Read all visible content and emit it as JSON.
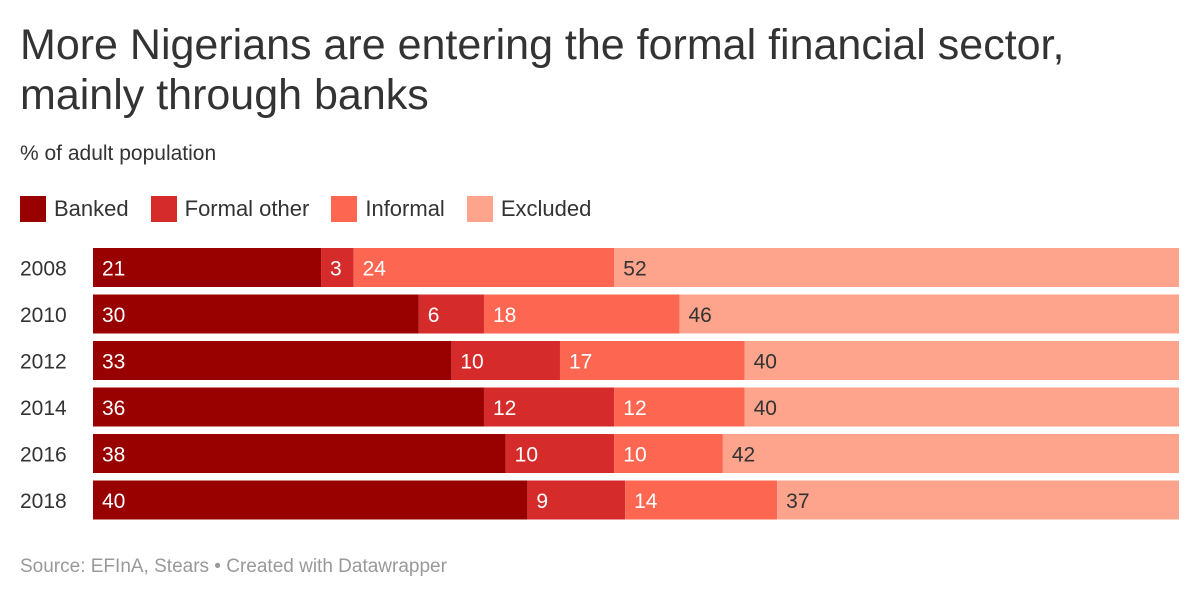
{
  "chart_data": {
    "type": "bar",
    "orientation": "horizontal",
    "stacked": true,
    "title": "More Nigerians are entering the formal financial sector, mainly through banks",
    "subtitle": "% of adult population",
    "categories": [
      "2008",
      "2010",
      "2012",
      "2014",
      "2016",
      "2018"
    ],
    "series": [
      {
        "name": "Banked",
        "color": "#990000",
        "label_color": "#ffffff",
        "values": [
          21,
          30,
          33,
          36,
          38,
          40
        ]
      },
      {
        "name": "Formal other",
        "color": "#d62b2b",
        "label_color": "#ffffff",
        "values": [
          3,
          6,
          10,
          12,
          10,
          9
        ]
      },
      {
        "name": "Informal",
        "color": "#fd6751",
        "label_color": "#ffffff",
        "values": [
          24,
          18,
          17,
          12,
          10,
          14
        ]
      },
      {
        "name": "Excluded",
        "color": "#fea38c",
        "label_color": "#333333",
        "values": [
          52,
          46,
          40,
          40,
          42,
          37
        ]
      }
    ],
    "xlim": [
      0,
      100
    ],
    "legend_position": "top-left",
    "grid": false,
    "source": "Source: EFInA, Stears • Created with Datawrapper"
  }
}
